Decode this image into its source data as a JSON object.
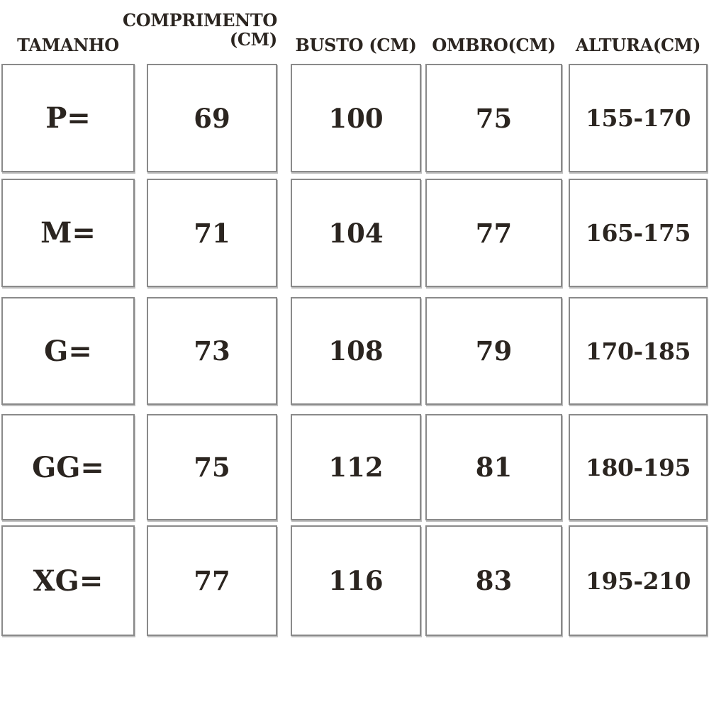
{
  "chart_data": {
    "type": "table",
    "columns": [
      "TAMANHO",
      "COMPRIMENTO (CM)",
      "BUSTO (CM)",
      "OMBRO(CM)",
      "ALTURA(CM)"
    ],
    "rows": [
      [
        "P=",
        "69",
        "100",
        "75",
        "155-170"
      ],
      [
        "M=",
        "71",
        "104",
        "77",
        "165-175"
      ],
      [
        "G=",
        "73",
        "108",
        "79",
        "170-185"
      ],
      [
        "GG=",
        "75",
        "112",
        "81",
        "180-195"
      ],
      [
        "XG=",
        "77",
        "116",
        "83",
        "195-210"
      ]
    ]
  },
  "headers": {
    "tamanho": "TAMANHO",
    "comprimento_line1": "COMPRIMENTO",
    "comprimento_line2": "(CM)",
    "busto": "BUSTO (CM)",
    "ombro": "OMBRO(CM)",
    "altura": "ALTURA(CM)"
  },
  "colors": {
    "text": "#2b2520",
    "cell_border": "#8a8a8a",
    "background": "#ffffff"
  }
}
